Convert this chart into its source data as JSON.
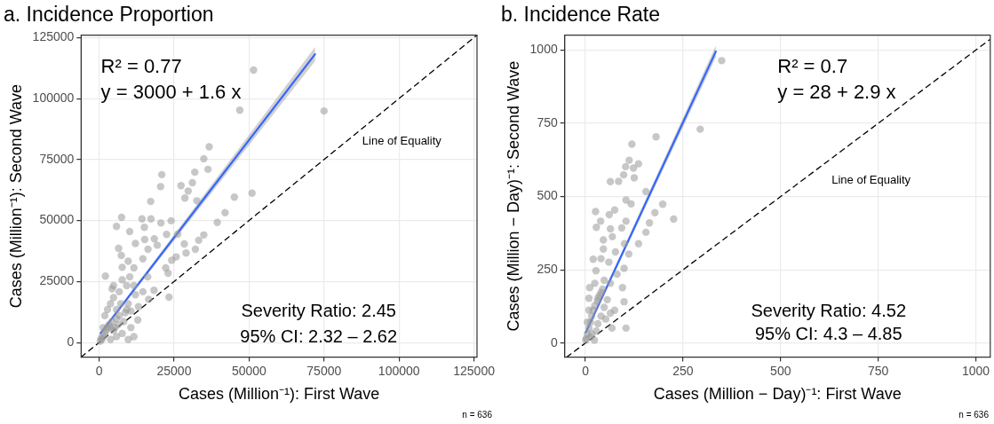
{
  "chart_data": [
    {
      "type": "scatter",
      "title": "a. Incidence Proportion",
      "xlabel": "Cases (Million⁻¹): First Wave",
      "ylabel": "Cases (Million⁻¹): Second Wave",
      "xlim": [
        -6000,
        126000
      ],
      "ylim": [
        -6000,
        126000
      ],
      "xticks": [
        0,
        25000,
        50000,
        75000,
        100000,
        125000
      ],
      "yticks": [
        0,
        25000,
        50000,
        75000,
        100000,
        125000
      ],
      "grid": true,
      "legend": false,
      "marker": "circle",
      "series": [
        {
          "color": "#999999",
          "x": [
            51500,
            46900,
            75000,
            36700,
            34900,
            31900,
            36300,
            20900,
            20500,
            27300,
            29700,
            31100,
            45100,
            51000,
            17200,
            28600,
            32600,
            42000,
            39400,
            7500,
            5800,
            10200,
            14300,
            17300,
            20600,
            24000,
            15100,
            22500,
            26200,
            34900,
            33200,
            15200,
            18400,
            12100,
            19400,
            28400,
            32100,
            6500,
            16300,
            7400,
            29000,
            14600,
            24200,
            25700,
            22200,
            23000,
            9700,
            7700,
            2100,
            11600,
            16200,
            18300,
            23300,
            16500,
            12900,
            10600,
            4800,
            6700,
            11600,
            14600,
            900,
            1400,
            1900,
            2300,
            2800,
            3300,
            3800,
            4300,
            4800,
            5300,
            5800,
            6300,
            6700,
            7700,
            8200,
            8700,
            9200,
            1900,
            2800,
            3800,
            4800,
            5800,
            7200,
            9700,
            1400,
            400,
            700,
            11600,
            9700,
            5800,
            3800,
            10600,
            13100,
            12100,
            9200,
            4300,
            7700,
            10200
          ],
          "values": [
            111700,
            95200,
            94900,
            80200,
            75300,
            69800,
            71000,
            68800,
            63900,
            64300,
            62100,
            65500,
            59600,
            61200,
            57800,
            59200,
            58100,
            53200,
            49200,
            51300,
            47600,
            45500,
            50700,
            50700,
            49000,
            49900,
            47200,
            44300,
            44400,
            44100,
            41900,
            42200,
            42500,
            40600,
            39900,
            40400,
            38200,
            38600,
            38200,
            35700,
            36700,
            34300,
            33700,
            35100,
            30600,
            28400,
            33300,
            30800,
            27200,
            30600,
            26900,
            21400,
            18600,
            17700,
            9200,
            6100,
            23300,
            20800,
            23300,
            20800,
            1200,
            2400,
            3700,
            4900,
            6100,
            7300,
            6100,
            8600,
            4900,
            6100,
            9800,
            7300,
            11000,
            3700,
            8600,
            12200,
            13500,
            11000,
            13500,
            15900,
            18400,
            13500,
            15900,
            15900,
            6100,
            600,
            1800,
            2400,
            1200,
            2400,
            1200,
            12900,
            14700,
            19600,
            23300,
            22000,
            25700,
            26900
          ]
        },
        {
          "type": "line",
          "color": "#3366ff",
          "marker": "none",
          "x": [
            500,
            72000
          ],
          "values": [
            3800,
            118200
          ],
          "lower": [
            3400,
            115300
          ],
          "upper": [
            4200,
            121100
          ]
        },
        {
          "type": "line",
          "color": "#000000",
          "marker": "none",
          "line_style": "dashed",
          "x": [
            -6000,
            126000
          ],
          "values": [
            -6000,
            126000
          ]
        }
      ],
      "annotations": [
        "R² = 0.77",
        "y = 3000 + 1.6 x",
        "Line of Equality",
        "Severity Ratio: 2.45",
        "95% CI: 2.32 – 2.62",
        "n = 636"
      ]
    },
    {
      "type": "scatter",
      "title": "b. Incidence Rate",
      "xlabel": "Cases (Million − Day)⁻¹: First Wave",
      "ylabel": "Cases (Million − Day)⁻¹: Second Wave",
      "xlim": [
        -53,
        1037
      ],
      "ylim": [
        -48,
        1051
      ],
      "xticks": [
        0,
        250,
        500,
        750,
        1000
      ],
      "yticks": [
        0,
        250,
        500,
        750,
        1000
      ],
      "grid": true,
      "legend": false,
      "marker": "circle",
      "series": [
        {
          "color": "#999999",
          "x": [
            349,
            294,
            181,
            119,
            112,
            136,
            103,
            123,
            98,
            125,
            64,
            85,
            155,
            104,
            117,
            26,
            75,
            61,
            198,
            178,
            226,
            39,
            164,
            104,
            28,
            64,
            93,
            155,
            69,
            46,
            136,
            100,
            46,
            77,
            111,
            20,
            40,
            60,
            99,
            27,
            81,
            64,
            95,
            11,
            99,
            75,
            68,
            104,
            32,
            40,
            48,
            24,
            9,
            2,
            5,
            9,
            13,
            16,
            20,
            24,
            31,
            36,
            44,
            9,
            5,
            16,
            28,
            32,
            40,
            48,
            56,
            23,
            1,
            52,
            64,
            13
          ],
          "values": [
            964,
            730,
            704,
            679,
            624,
            612,
            602,
            597,
            574,
            564,
            551,
            552,
            517,
            488,
            475,
            449,
            454,
            438,
            474,
            445,
            423,
            416,
            410,
            416,
            395,
            390,
            393,
            378,
            363,
            352,
            339,
            339,
            321,
            311,
            304,
            286,
            288,
            276,
            255,
            247,
            235,
            204,
            189,
            189,
            141,
            112,
            51,
            51,
            153,
            173,
            214,
            204,
            153,
            15,
            31,
            51,
            71,
            92,
            112,
            128,
            143,
            163,
            184,
            112,
            71,
            31,
            41,
            66,
            92,
            122,
            148,
            10,
            10,
            82,
            102,
            20
          ]
        },
        {
          "type": "line",
          "color": "#3366ff",
          "marker": "none",
          "x": [
            1,
            334
          ],
          "values": [
            36,
            995
          ],
          "lower": [
            30,
            975
          ],
          "upper": [
            42,
            1015
          ]
        },
        {
          "type": "line",
          "color": "#000000",
          "marker": "none",
          "line_style": "dashed",
          "x": [
            -48,
            1037
          ],
          "values": [
            -48,
            1037
          ]
        }
      ],
      "annotations": [
        "R² = 0.7",
        "y = 28 + 2.9 x",
        "Line of Equality",
        "Severity Ratio: 4.52",
        "95% CI: 4.3 – 4.85",
        "n = 636"
      ]
    }
  ]
}
